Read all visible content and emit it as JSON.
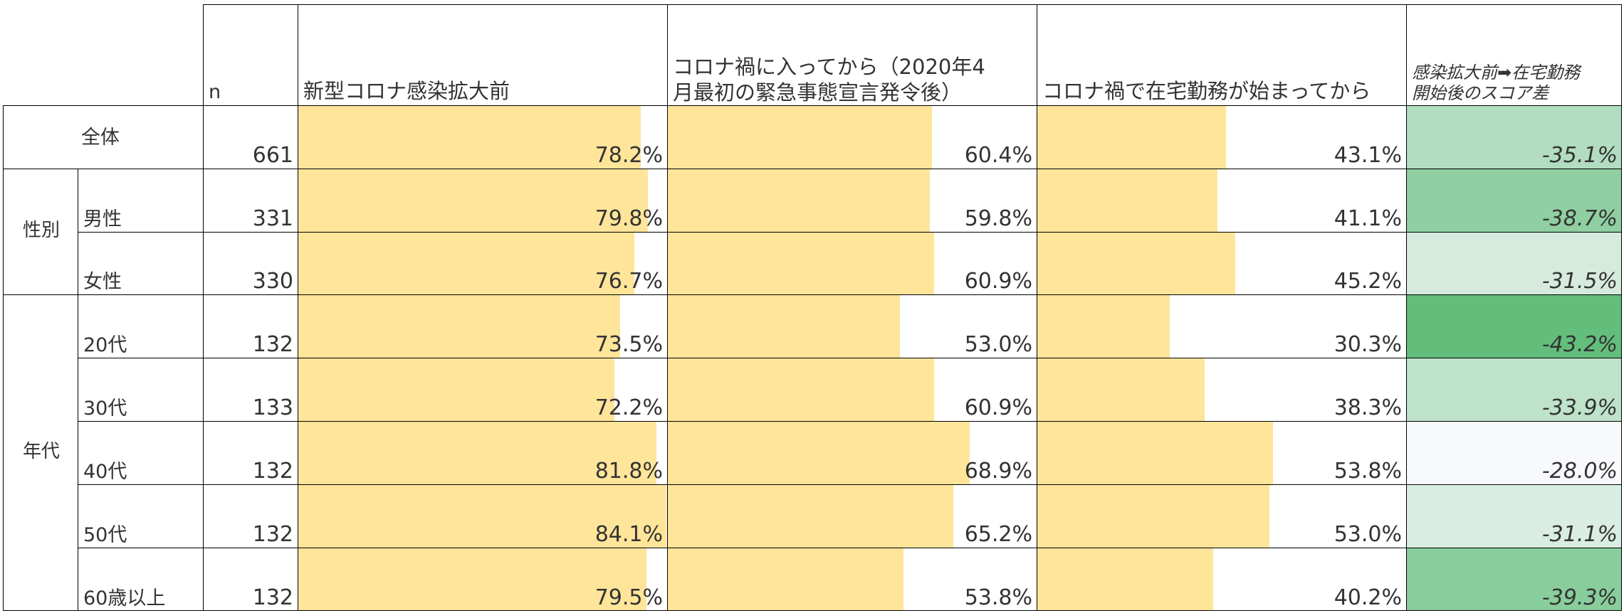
{
  "headers": {
    "n": "n",
    "before": "新型コロナ感染拡大前",
    "after_covid_line1": "コロナ禍に入ってから（2020年4",
    "after_covid_line2": "月最初の緊急事態宣言発令後）",
    "after_wfh": "コロナ禍で在宅勤務が始まってから",
    "diff_line1": "感染拡大前➡在宅勤務",
    "diff_line2": "開始後のスコア差"
  },
  "groups": {
    "sex": "性別",
    "age": "年代"
  },
  "colors": {
    "bar": "#fee599",
    "diff_light": "#f8f9fc",
    "diff_dark": "#63be7b"
  },
  "rows": [
    {
      "label": "全体",
      "n": "661",
      "before": 78.2,
      "before_text": "78.2%",
      "covid": 60.4,
      "covid_text": "60.4%",
      "wfh": 43.1,
      "wfh_text": "43.1%",
      "diff": -35.1,
      "diff_text": "-35.1%"
    },
    {
      "label": "男性",
      "n": "331",
      "before": 79.8,
      "before_text": "79.8%",
      "covid": 59.8,
      "covid_text": "59.8%",
      "wfh": 41.1,
      "wfh_text": "41.1%",
      "diff": -38.7,
      "diff_text": "-38.7%"
    },
    {
      "label": "女性",
      "n": "330",
      "before": 76.7,
      "before_text": "76.7%",
      "covid": 60.9,
      "covid_text": "60.9%",
      "wfh": 45.2,
      "wfh_text": "45.2%",
      "diff": -31.5,
      "diff_text": "-31.5%"
    },
    {
      "label": "20代",
      "n": "132",
      "before": 73.5,
      "before_text": "73.5%",
      "covid": 53.0,
      "covid_text": "53.0%",
      "wfh": 30.3,
      "wfh_text": "30.3%",
      "diff": -43.2,
      "diff_text": "-43.2%"
    },
    {
      "label": "30代",
      "n": "133",
      "before": 72.2,
      "before_text": "72.2%",
      "covid": 60.9,
      "covid_text": "60.9%",
      "wfh": 38.3,
      "wfh_text": "38.3%",
      "diff": -33.9,
      "diff_text": "-33.9%"
    },
    {
      "label": "40代",
      "n": "132",
      "before": 81.8,
      "before_text": "81.8%",
      "covid": 68.9,
      "covid_text": "68.9%",
      "wfh": 53.8,
      "wfh_text": "53.8%",
      "diff": -28.0,
      "diff_text": "-28.0%"
    },
    {
      "label": "50代",
      "n": "132",
      "before": 84.1,
      "before_text": "84.1%",
      "covid": 65.2,
      "covid_text": "65.2%",
      "wfh": 53.0,
      "wfh_text": "53.0%",
      "diff": -31.1,
      "diff_text": "-31.1%"
    },
    {
      "label": "60歳以上",
      "n": "132",
      "before": 79.5,
      "before_text": "79.5%",
      "covid": 53.8,
      "covid_text": "53.8%",
      "wfh": 40.2,
      "wfh_text": "40.2%",
      "diff": -39.3,
      "diff_text": "-39.3%"
    }
  ]
}
